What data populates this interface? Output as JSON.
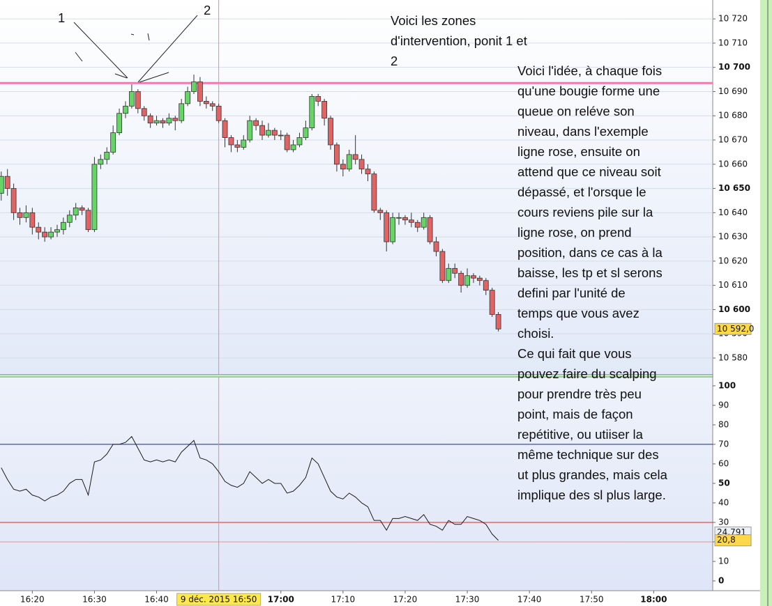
{
  "chart_data": [
    {
      "type": "candlestick",
      "x": [
        975,
        976,
        977,
        978,
        979,
        980,
        981,
        982,
        983,
        984,
        985,
        986,
        987,
        988,
        989,
        990,
        991,
        992,
        993,
        994,
        995,
        996,
        997,
        998,
        999,
        1000,
        1001,
        1002,
        1003,
        1004,
        1005,
        1006,
        1007,
        1008,
        1009,
        1010,
        1011,
        1012,
        1013,
        1014,
        1015,
        1016,
        1017,
        1018,
        1019,
        1020,
        1021,
        1022,
        1023,
        1024,
        1025,
        1026,
        1027,
        1028,
        1029,
        1030,
        1031,
        1032,
        1033,
        1034,
        1035,
        1036,
        1037,
        1038,
        1039,
        1040,
        1041,
        1042,
        1043,
        1044,
        1045,
        1046,
        1047,
        1048,
        1049,
        1050,
        1051,
        1052,
        1053,
        1054,
        1055
      ],
      "open": [
        10648,
        10655,
        10650,
        10640,
        10638,
        10640,
        10634,
        10632,
        10630,
        10632,
        10633,
        10636,
        10639,
        10642,
        10641,
        10633,
        10660,
        10662,
        10665,
        10673,
        10681,
        10684,
        10690,
        10683,
        10680,
        10677,
        10678,
        10677,
        10679,
        10678,
        10685,
        10690,
        10694,
        10686,
        10685,
        10684,
        10678,
        10671,
        10668,
        10667,
        10670,
        10678,
        10676,
        10672,
        10674,
        10672,
        10672,
        10666,
        10668,
        10671,
        10675,
        10688,
        10686,
        10679,
        10668,
        10660,
        10658,
        10664,
        10662,
        10658,
        10656,
        10641,
        10640,
        10628,
        10638,
        10638,
        10637,
        10636,
        10634,
        10638,
        10628,
        10624,
        10612,
        10617,
        10615,
        10610,
        10614,
        10613,
        10612,
        10608,
        10598
      ],
      "high": [
        10657,
        10658,
        10652,
        10642,
        10643,
        10642,
        10636,
        10634,
        10634,
        10635,
        10638,
        10641,
        10644,
        10643,
        10642,
        10663,
        10664,
        10667,
        10676,
        10683,
        10686,
        10693,
        10691,
        10684,
        10681,
        10680,
        10679,
        10681,
        10680,
        10687,
        10692,
        10697,
        10696,
        10688,
        10686,
        10685,
        10679,
        10672,
        10670,
        10672,
        10680,
        10679,
        10678,
        10677,
        10675,
        10674,
        10673,
        10670,
        10673,
        10678,
        10689,
        10689,
        10687,
        10680,
        10669,
        10662,
        10666,
        10672,
        10664,
        10660,
        10657,
        10642,
        10641,
        10640,
        10640,
        10639,
        10640,
        10637,
        10640,
        10639,
        10630,
        10625,
        10619,
        10619,
        10616,
        10617,
        10615,
        10614,
        10613,
        10609,
        10599
      ],
      "low": [
        10645,
        10647,
        10637,
        10635,
        10636,
        10631,
        10629,
        10628,
        10629,
        10630,
        10631,
        10634,
        10637,
        10639,
        10632,
        10632,
        10658,
        10660,
        10664,
        10672,
        10679,
        10683,
        10681,
        10678,
        10675,
        10676,
        10675,
        10676,
        10674,
        10677,
        10684,
        10689,
        10684,
        10683,
        10682,
        10677,
        10667,
        10665,
        10665,
        10666,
        10669,
        10674,
        10670,
        10671,
        10670,
        10670,
        10665,
        10665,
        10667,
        10670,
        10674,
        10684,
        10676,
        10666,
        10657,
        10655,
        10657,
        10660,
        10656,
        10653,
        10640,
        10637,
        10624,
        10627,
        10635,
        10635,
        10634,
        10632,
        10633,
        10627,
        10622,
        10611,
        10611,
        10613,
        10607,
        10609,
        10611,
        10610,
        10606,
        10597,
        10591
      ],
      "close": [
        10655,
        10650,
        10640,
        10638,
        10640,
        10634,
        10632,
        10630,
        10632,
        10633,
        10636,
        10639,
        10642,
        10641,
        10633,
        10660,
        10662,
        10665,
        10673,
        10681,
        10684,
        10690,
        10683,
        10680,
        10677,
        10678,
        10677,
        10679,
        10678,
        10685,
        10690,
        10694,
        10686,
        10685,
        10684,
        10678,
        10671,
        10668,
        10667,
        10670,
        10678,
        10676,
        10672,
        10674,
        10672,
        10672,
        10666,
        10668,
        10671,
        10675,
        10688,
        10686,
        10679,
        10668,
        10660,
        10658,
        10664,
        10662,
        10658,
        10656,
        10641,
        10640,
        10628,
        10638,
        10638,
        10637,
        10636,
        10634,
        10638,
        10628,
        10624,
        10612,
        10617,
        10615,
        10610,
        10614,
        10613,
        10612,
        10608,
        10598,
        10592
      ],
      "up_color": "#66d466",
      "down_color": "#e06464",
      "xlim": [
        974.8,
        1089.5
      ],
      "ylim": [
        10573.1,
        10727.8
      ],
      "yticks": [
        {
          "value": 10580,
          "label": "10 580"
        },
        {
          "value": 10590,
          "label": "10 590"
        },
        {
          "value": 10600,
          "label": "10 600"
        },
        {
          "value": 10610,
          "label": "10 610"
        },
        {
          "value": 10620,
          "label": "10 620"
        },
        {
          "value": 10630,
          "label": "10 630"
        },
        {
          "value": 10640,
          "label": "10 640"
        },
        {
          "value": 10650,
          "label": "10 650"
        },
        {
          "value": 10660,
          "label": "10 660"
        },
        {
          "value": 10670,
          "label": "10 670"
        },
        {
          "value": 10680,
          "label": "10 680"
        },
        {
          "value": 10690,
          "label": "10 690"
        },
        {
          "value": 10700,
          "label": "10 700"
        },
        {
          "value": 10710,
          "label": "10 710"
        },
        {
          "value": 10720,
          "label": "10 720"
        }
      ],
      "grid": true,
      "hlines": [
        {
          "value": 10693.5,
          "color": "#f07ab0"
        }
      ],
      "markers": [
        {
          "value": 10592,
          "label": "10 592,0",
          "color": "#ffd84a"
        }
      ]
    },
    {
      "type": "line",
      "x": [
        975,
        976,
        977,
        978,
        979,
        980,
        981,
        982,
        983,
        984,
        985,
        986,
        987,
        988,
        989,
        990,
        991,
        992,
        993,
        994,
        995,
        996,
        997,
        998,
        999,
        1000,
        1001,
        1002,
        1003,
        1004,
        1005,
        1006,
        1007,
        1008,
        1009,
        1010,
        1011,
        1012,
        1013,
        1014,
        1015,
        1016,
        1017,
        1018,
        1019,
        1020,
        1021,
        1022,
        1023,
        1024,
        1025,
        1026,
        1027,
        1028,
        1029,
        1030,
        1031,
        1032,
        1033,
        1034,
        1035,
        1036,
        1037,
        1038,
        1039,
        1040,
        1041,
        1042,
        1043,
        1044,
        1045,
        1046,
        1047,
        1048,
        1049,
        1050,
        1051,
        1052,
        1053,
        1054,
        1055
      ],
      "values": [
        58,
        52,
        47,
        46,
        47,
        44,
        43,
        41,
        43,
        44,
        46,
        50,
        52,
        52,
        44,
        61,
        62,
        65,
        70,
        70,
        71,
        74,
        68,
        62,
        61,
        62,
        61,
        62,
        61,
        66,
        69,
        72,
        63,
        62,
        60,
        56,
        51,
        49,
        48,
        50,
        56,
        53,
        50,
        52,
        50,
        50,
        45,
        46,
        49,
        53,
        63,
        60,
        53,
        46,
        43,
        42,
        45,
        43,
        40,
        38,
        31,
        31,
        26,
        32,
        32,
        33,
        32,
        31,
        34,
        29,
        28,
        26,
        31,
        29,
        29,
        33,
        32,
        31,
        29,
        24,
        20.8
      ],
      "color": "#1a1a1a",
      "xlim": [
        974.8,
        1089.5
      ],
      "ylim": [
        -5,
        104.6
      ],
      "yticks": [
        0,
        10,
        20,
        30,
        40,
        50,
        60,
        70,
        80,
        90,
        100
      ],
      "xticks": [
        {
          "value": 980,
          "label": "16:20"
        },
        {
          "value": 990,
          "label": "16:30"
        },
        {
          "value": 1000,
          "label": "16:40"
        },
        {
          "value": 1020,
          "label": "17:00"
        },
        {
          "value": 1030,
          "label": "17:10"
        },
        {
          "value": 1040,
          "label": "17:20"
        },
        {
          "value": 1050,
          "label": "17:30"
        },
        {
          "value": 1060,
          "label": "17:40"
        },
        {
          "value": 1070,
          "label": "17:50"
        },
        {
          "value": 1080,
          "label": "18:00"
        }
      ],
      "hlines": [
        {
          "value": 70,
          "color": "#1c2a6a"
        },
        {
          "value": 30,
          "color": "#e02828"
        },
        {
          "value": 20,
          "color": "#f09090"
        }
      ],
      "markers": [
        {
          "value": 24.791,
          "label": "24,791",
          "color": "#eef0f8"
        },
        {
          "value": 20.8,
          "label": "20,8",
          "color": "#ffd84a"
        }
      ],
      "cursor": {
        "value": 1010,
        "label": "9 déc. 2015 16:50"
      }
    }
  ],
  "annotations": {
    "point_1": "1",
    "point_2": "2",
    "zones": [
      "Voici les zones",
      "d'intervention, ponit 1 et",
      "2"
    ],
    "idea": [
      "Voici l'idée, à chaque fois",
      "qu'une bougie forme une",
      "queue on reléve son",
      "niveau, dans l'exemple",
      "ligne rose, ensuite on",
      "attend que ce niveau soit",
      "dépassé, et l'orsque le",
      "cours reviens pile sur la",
      "ligne rose,  on prend",
      "position, dans ce cas à la",
      "baisse, les tp et sl serons",
      "defini par l'unité de",
      "temps que vous avez",
      "choisi.",
      "Ce qui fait que vous",
      "pouvez faire du scalping",
      "pour prendre très peu",
      "point, mais de façon",
      "repétitive, ou utiiser la",
      "même technique sur des",
      "ut plus grandes, mais cela",
      "implique des sl plus large."
    ]
  }
}
